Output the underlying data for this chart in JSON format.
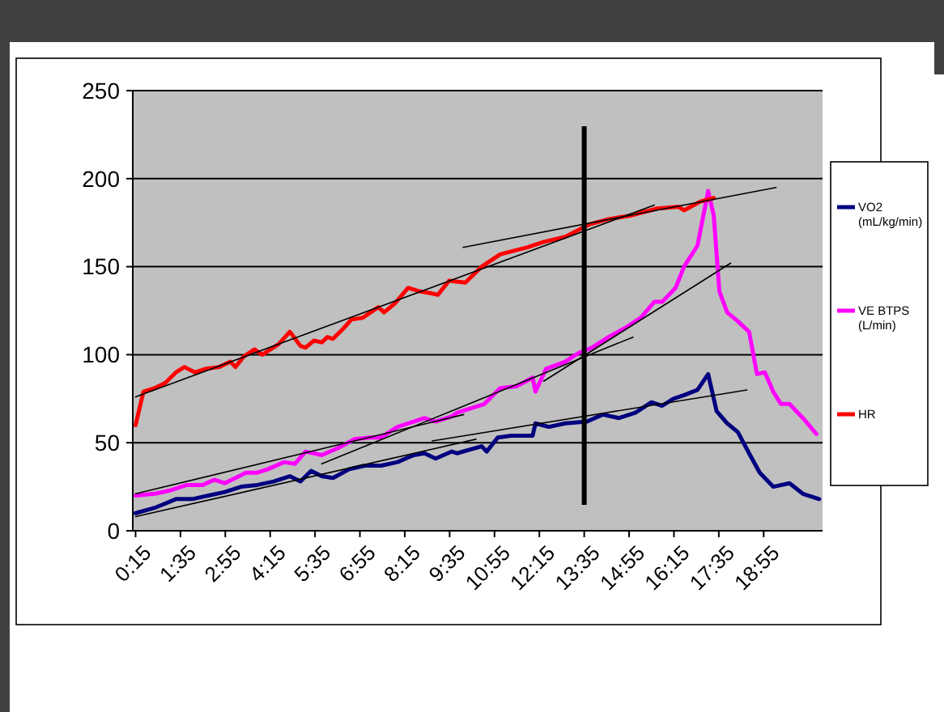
{
  "chart_data": {
    "type": "line",
    "xlim": [
      10,
      1240
    ],
    "xticks": [
      {
        "value": 15,
        "label": "0:15"
      },
      {
        "value": 95,
        "label": "1:35"
      },
      {
        "value": 175,
        "label": "2:55"
      },
      {
        "value": 255,
        "label": "4:15"
      },
      {
        "value": 335,
        "label": "5:35"
      },
      {
        "value": 415,
        "label": "6:55"
      },
      {
        "value": 495,
        "label": "8:15"
      },
      {
        "value": 575,
        "label": "9:35"
      },
      {
        "value": 655,
        "label": "10:55"
      },
      {
        "value": 735,
        "label": "12:15"
      },
      {
        "value": 815,
        "label": "13:35"
      },
      {
        "value": 895,
        "label": "14:55"
      },
      {
        "value": 975,
        "label": "16:15"
      },
      {
        "value": 1055,
        "label": "17:35"
      },
      {
        "value": 1135,
        "label": "18:55"
      }
    ],
    "ylim": [
      0,
      250
    ],
    "yticks": [
      0,
      50,
      100,
      150,
      200,
      250
    ],
    "grid": "y",
    "legend": "right",
    "line_style": "solid",
    "marker": "none",
    "ref_lines": [
      {
        "axis": "x",
        "value": 815,
        "color": "#000000"
      }
    ],
    "series": [
      {
        "name": "VO2 (mL/kg/min)",
        "color": "#000080",
        "x": [
          15,
          49,
          87,
          116,
          145,
          174,
          203,
          232,
          261,
          290,
          309,
          328,
          347,
          367,
          396,
          424,
          453,
          482,
          511,
          530,
          550,
          579,
          588,
          632,
          641,
          661,
          685,
          723,
          728,
          752,
          781,
          820,
          848,
          877,
          906,
          935,
          954,
          974,
          993,
          1017,
          1036,
          1051,
          1070,
          1089,
          1109,
          1128,
          1152,
          1181,
          1205,
          1234
        ],
        "values": [
          10,
          13,
          18,
          18,
          20,
          22,
          25,
          26,
          28,
          31,
          28,
          34,
          31,
          30,
          35,
          37,
          37,
          39,
          43,
          44,
          41,
          45,
          44,
          48,
          45,
          53,
          54,
          54,
          61,
          59,
          61,
          62,
          66,
          64,
          67,
          73,
          71,
          75,
          77,
          80,
          89,
          68,
          61,
          56,
          44,
          33,
          25,
          27,
          21,
          18
        ]
      },
      {
        "name": "VE BTPS (L/min)",
        "color": "#ff00ff",
        "x": [
          15,
          49,
          78,
          106,
          135,
          155,
          174,
          193,
          212,
          232,
          251,
          280,
          299,
          318,
          347,
          376,
          405,
          434,
          453,
          482,
          511,
          530,
          550,
          579,
          588,
          637,
          665,
          694,
          723,
          728,
          747,
          781,
          805,
          829,
          858,
          887,
          916,
          940,
          954,
          978,
          993,
          1017,
          1036,
          1046,
          1056,
          1070,
          1089,
          1109,
          1123,
          1137,
          1152,
          1166,
          1181,
          1205,
          1229
        ],
        "values": [
          20,
          21,
          23,
          26,
          26,
          29,
          27,
          30,
          33,
          33,
          35,
          39,
          38,
          45,
          43,
          47,
          52,
          53,
          53,
          59,
          62,
          64,
          62,
          65,
          67,
          72,
          81,
          82,
          87,
          79,
          92,
          96,
          101,
          104,
          110,
          115,
          121,
          130,
          130,
          138,
          150,
          162,
          193,
          179,
          136,
          124,
          119,
          113,
          89,
          90,
          79,
          72,
          72,
          64,
          55
        ]
      },
      {
        "name": "HR",
        "color": "#ff0000",
        "x": [
          15,
          29,
          49,
          68,
          87,
          102,
          121,
          140,
          164,
          184,
          193,
          208,
          227,
          241,
          270,
          290,
          309,
          318,
          333,
          347,
          357,
          367,
          386,
          400,
          420,
          434,
          448,
          458,
          477,
          501,
          521,
          540,
          554,
          574,
          603,
          632,
          665,
          714,
          742,
          781,
          824,
          858,
          897,
          945,
          983,
          993,
          1022,
          1046
        ],
        "values": [
          60,
          79,
          81,
          84,
          90,
          93,
          90,
          92,
          93,
          96,
          93,
          99,
          103,
          100,
          106,
          113,
          105,
          104,
          108,
          107,
          110,
          109,
          115,
          120,
          121,
          124,
          127,
          124,
          129,
          138,
          136,
          135,
          134,
          142,
          141,
          150,
          157,
          161,
          164,
          167,
          174,
          177,
          179,
          183,
          184,
          182,
          187,
          189
        ]
      },
      {
        "color": "#000000",
        "x": [
          15,
          940
        ],
        "values": [
          76,
          185
        ]
      },
      {
        "color": "#000000",
        "x": [
          599,
          1157
        ],
        "values": [
          161,
          195
        ]
      },
      {
        "color": "#000000",
        "x": [
          15,
          600
        ],
        "values": [
          21,
          66
        ]
      },
      {
        "color": "#000000",
        "x": [
          347,
          902
        ],
        "values": [
          38,
          110
        ]
      },
      {
        "color": "#000000",
        "x": [
          743,
          1076
        ],
        "values": [
          85,
          152
        ]
      },
      {
        "color": "#000000",
        "x": [
          15,
          622
        ],
        "values": [
          8,
          52
        ]
      },
      {
        "color": "#000000",
        "x": [
          544,
          1105
        ],
        "values": [
          51,
          80
        ]
      }
    ]
  }
}
